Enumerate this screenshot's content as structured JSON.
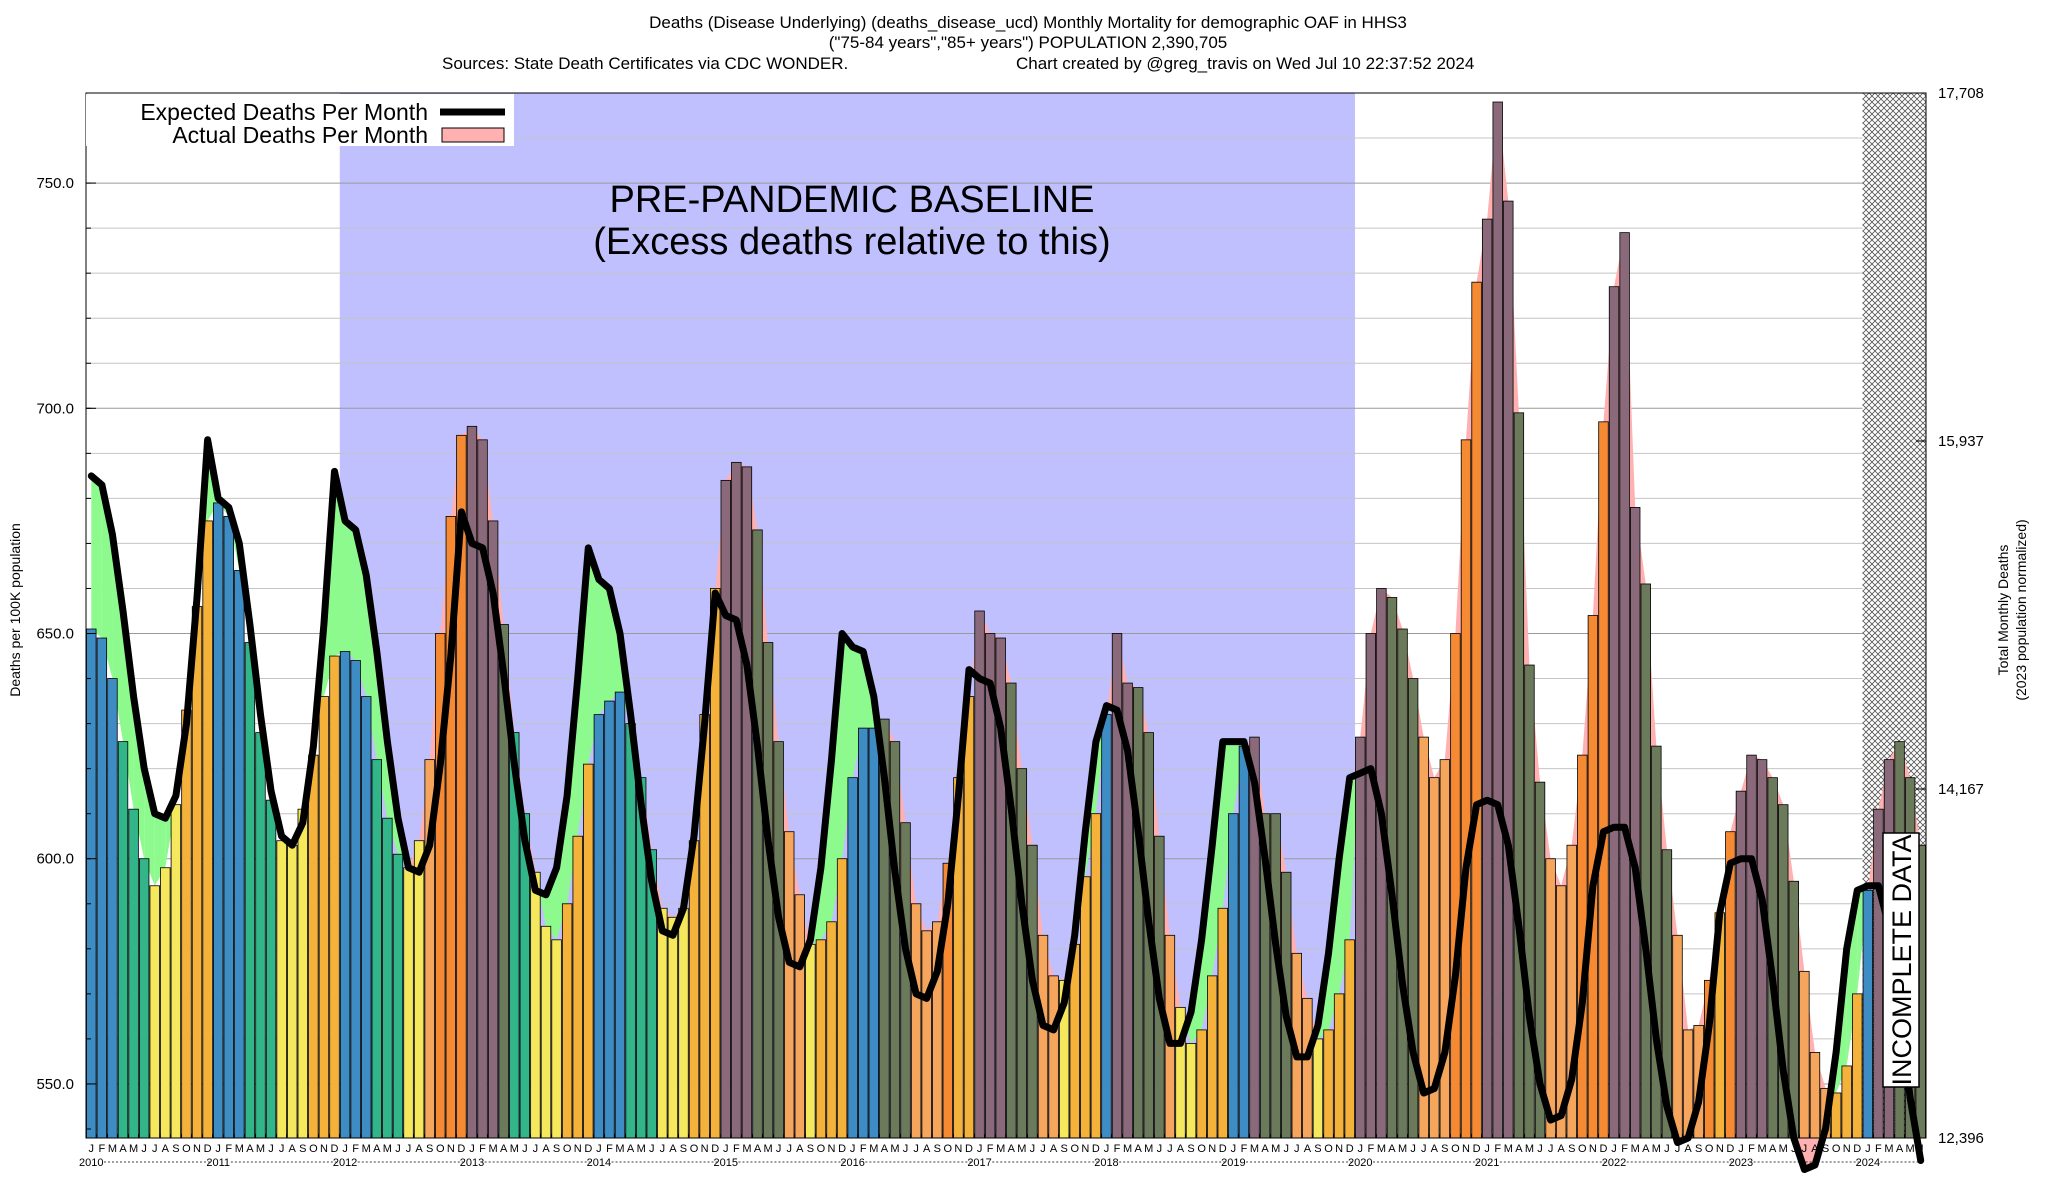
{
  "chart_data": {
    "type": "bar",
    "title_lines": [
      "Deaths (Disease Underlying) (deaths_disease_ucd) Monthly Mortality for demographic OAF in HHS3",
      "(\"75-84 years\",\"85+ years\") POPULATION 2,390,705",
      "Sources: State Death Certificates via CDC WONDER.",
      "Chart created by @greg_travis on Wed Jul 10 22:37:52 2024"
    ],
    "ylabel": "Deaths per 100K population",
    "ylabel_right": "Total Monthly Deaths",
    "ylabel_right_sub": "(2023 population normalized)",
    "ylim": [
      538,
      770
    ],
    "yticks": [
      "550.0",
      "600.0",
      "650.0",
      "700.0",
      "750.0"
    ],
    "yticks_right": [
      "12,396",
      "14,167",
      "15,937",
      "17,708"
    ],
    "month_letters": [
      "J",
      "F",
      "M",
      "A",
      "M",
      "J",
      "J",
      "A",
      "S",
      "O",
      "N",
      "D"
    ],
    "years": [
      "2010",
      "2011",
      "2012",
      "2013",
      "2014",
      "2015",
      "2016",
      "2017",
      "2018",
      "2019",
      "2020",
      "2021",
      "2022",
      "2023",
      "2024"
    ],
    "legend": [
      {
        "label": "Expected Deaths Per Month",
        "color": "#000000"
      },
      {
        "label": "Actual Deaths Per Month",
        "color": "#ffb0b0"
      }
    ],
    "annotations": {
      "baseline_line1": "PRE-PANDEMIC BASELINE",
      "baseline_line2": "(Excess deaths relative to this)",
      "incomplete": "INCOMPLETE DATA"
    },
    "baseline_span": [
      "2012-01",
      "2019-12"
    ],
    "incomplete_from": "2024-01",
    "grid": true,
    "x_start": "2010-01",
    "actual": [
      651,
      649,
      640,
      626,
      611,
      600,
      594,
      598,
      612,
      633,
      656,
      675,
      679,
      676,
      664,
      648,
      628,
      613,
      604,
      603,
      611,
      623,
      636,
      645,
      646,
      644,
      636,
      622,
      609,
      601,
      598,
      604,
      622,
      650,
      676,
      694,
      696,
      693,
      675,
      652,
      628,
      610,
      597,
      585,
      582,
      590,
      605,
      621,
      632,
      635,
      637,
      630,
      618,
      602,
      589,
      587,
      589,
      604,
      632,
      660,
      684,
      688,
      687,
      673,
      648,
      626,
      606,
      592,
      581,
      582,
      586,
      600,
      618,
      629,
      629,
      631,
      626,
      608,
      590,
      584,
      586,
      599,
      618,
      636,
      655,
      650,
      649,
      639,
      620,
      603,
      583,
      574,
      573,
      581,
      596,
      610,
      632,
      650,
      639,
      638,
      628,
      605,
      583,
      567,
      559,
      562,
      574,
      589,
      610,
      625,
      627,
      610,
      610,
      597,
      579,
      569,
      560,
      562,
      570,
      582,
      627,
      650,
      660,
      658,
      651,
      640,
      627,
      618,
      622,
      650,
      693,
      728,
      742,
      768,
      746,
      699,
      643,
      617,
      600,
      594,
      603,
      623,
      654,
      697,
      727,
      739,
      678,
      661,
      625,
      602,
      583,
      562,
      563,
      573,
      588,
      606,
      615,
      623,
      622,
      618,
      612,
      595,
      575,
      557,
      549,
      548,
      554,
      570,
      593,
      611,
      622,
      626,
      618,
      603
    ],
    "expected": [
      685,
      683,
      672,
      655,
      636,
      620,
      610,
      609,
      614,
      630,
      658,
      693,
      680,
      678,
      670,
      652,
      632,
      615,
      605,
      603,
      608,
      625,
      652,
      686,
      675,
      673,
      663,
      646,
      626,
      609,
      598,
      597,
      603,
      621,
      645,
      677,
      670,
      669,
      659,
      641,
      621,
      604,
      593,
      592,
      598,
      614,
      640,
      669,
      662,
      660,
      650,
      632,
      612,
      595,
      584,
      583,
      589,
      605,
      630,
      659,
      654,
      653,
      643,
      625,
      604,
      587,
      577,
      576,
      582,
      598,
      622,
      650,
      647,
      646,
      636,
      618,
      597,
      580,
      570,
      569,
      575,
      590,
      614,
      642,
      640,
      639,
      629,
      611,
      590,
      573,
      563,
      562,
      568,
      583,
      606,
      626,
      634,
      633,
      624,
      606,
      586,
      569,
      559,
      559,
      566,
      582,
      603,
      626,
      626,
      626,
      617,
      600,
      581,
      565,
      556,
      556,
      563,
      579,
      600,
      618,
      619,
      620,
      610,
      592,
      572,
      557,
      548,
      549,
      557,
      574,
      598,
      612,
      613,
      612,
      603,
      585,
      565,
      550,
      542,
      543,
      551,
      568,
      594,
      606,
      607,
      607,
      598,
      580,
      560,
      545,
      537,
      538,
      546,
      563,
      588,
      599,
      600,
      600,
      591,
      573,
      553,
      538,
      531,
      532,
      540,
      557,
      580,
      593,
      594,
      594,
      585,
      566,
      547,
      533
    ]
  }
}
